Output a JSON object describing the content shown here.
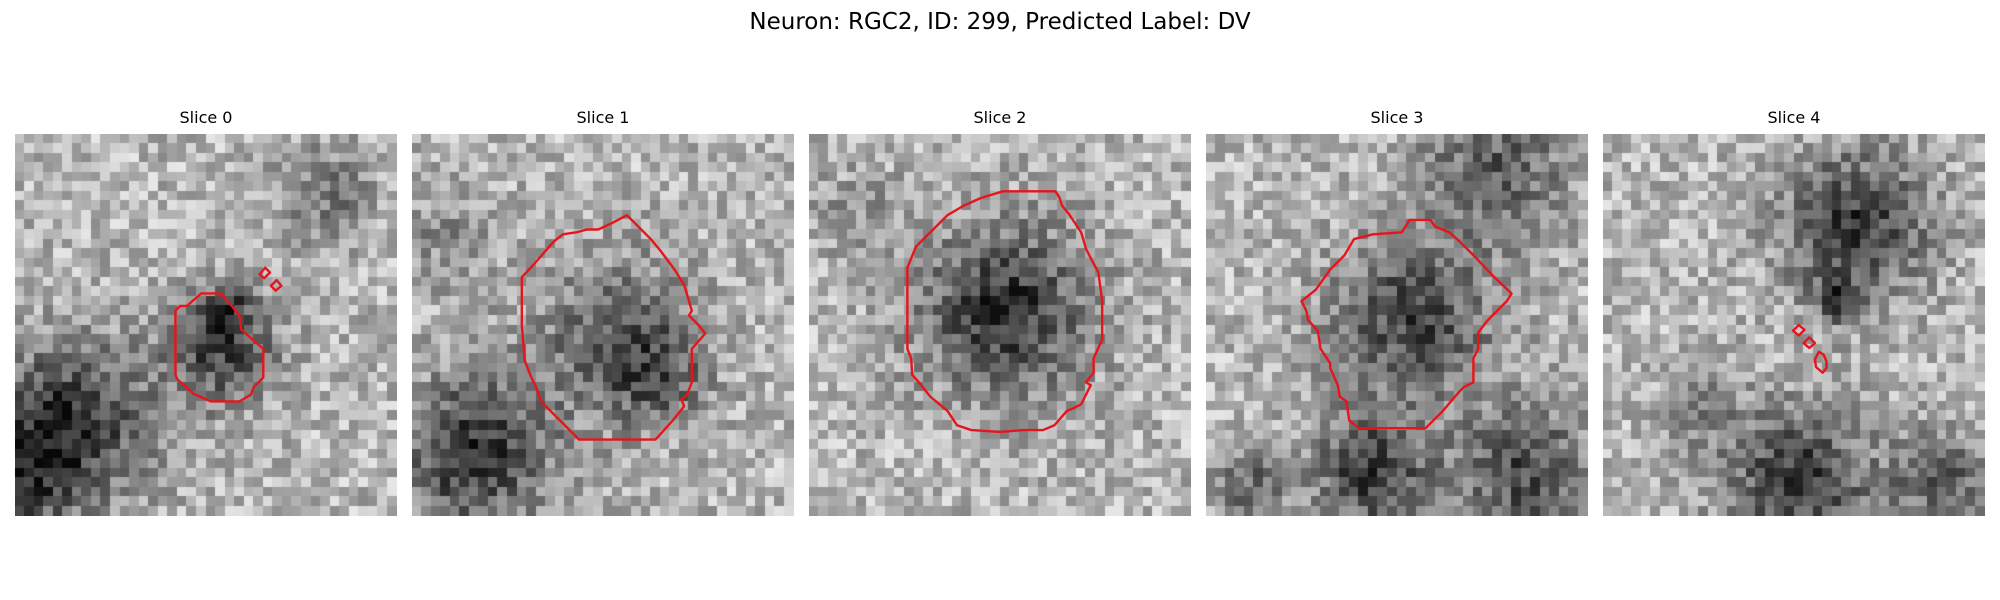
{
  "figure": {
    "title": "Neuron: RGC2, ID: 299, Predicted Label: DV"
  },
  "colors": {
    "background": "#ffffff",
    "contour": "#e8141b",
    "colormap": "gray"
  },
  "panels": [
    {
      "title": "Slice 0",
      "contours": [
        [
          [
            16.8,
            18.5
          ],
          [
            17.3,
            18.0
          ],
          [
            18.0,
            18.0
          ],
          [
            19.5,
            16.7
          ],
          [
            21.5,
            16.7
          ],
          [
            22.7,
            18.0
          ],
          [
            23.5,
            19.0
          ],
          [
            23.7,
            20.5
          ],
          [
            26.0,
            22.5
          ],
          [
            26.0,
            25.0
          ],
          [
            26.0,
            25.5
          ],
          [
            25.0,
            26.5
          ],
          [
            24.7,
            27.3
          ],
          [
            23.5,
            28.0
          ],
          [
            20.5,
            28.0
          ],
          [
            18.7,
            27.2
          ],
          [
            17.0,
            25.7
          ],
          [
            16.8,
            25.2
          ],
          [
            16.8,
            18.5
          ]
        ],
        [
          [
            25.6,
            14.7
          ],
          [
            26.2,
            14.0
          ],
          [
            26.7,
            14.5
          ],
          [
            26.1,
            15.1
          ],
          [
            25.6,
            14.7
          ]
        ],
        [
          [
            26.8,
            15.9
          ],
          [
            27.4,
            15.3
          ],
          [
            27.9,
            15.9
          ],
          [
            27.3,
            16.4
          ],
          [
            26.8,
            15.9
          ]
        ]
      ]
    },
    {
      "title": "Slice 1",
      "contours": [
        [
          [
            11.5,
            15.0
          ],
          [
            12.8,
            13.6
          ],
          [
            14.8,
            11.3
          ],
          [
            15.8,
            10.5
          ],
          [
            17.2,
            10.3
          ],
          [
            18.3,
            10.0
          ],
          [
            19.5,
            10.0
          ],
          [
            21.0,
            9.3
          ],
          [
            22.5,
            8.5
          ],
          [
            23.7,
            9.7
          ],
          [
            25.0,
            11.0
          ],
          [
            26.0,
            12.2
          ],
          [
            27.5,
            14.2
          ],
          [
            28.5,
            15.8
          ],
          [
            29.3,
            18.5
          ],
          [
            29.0,
            19.0
          ],
          [
            30.0,
            20.0
          ],
          [
            30.7,
            20.9
          ],
          [
            29.3,
            22.5
          ],
          [
            29.3,
            26.0
          ],
          [
            28.8,
            27.3
          ],
          [
            28.2,
            27.8
          ],
          [
            28.5,
            28.5
          ],
          [
            27.3,
            30.0
          ],
          [
            25.5,
            32.0
          ],
          [
            17.5,
            32.0
          ],
          [
            16.0,
            30.5
          ],
          [
            13.5,
            28.0
          ],
          [
            13.0,
            26.5
          ],
          [
            12.5,
            25.5
          ],
          [
            11.8,
            23.7
          ],
          [
            11.5,
            20.0
          ],
          [
            11.5,
            15.0
          ]
        ]
      ]
    },
    {
      "title": "Slice 2",
      "contours": [
        [
          [
            10.3,
            14.0
          ],
          [
            11.2,
            11.8
          ],
          [
            12.5,
            10.5
          ],
          [
            13.5,
            9.5
          ],
          [
            14.5,
            8.5
          ],
          [
            16.2,
            7.5
          ],
          [
            18.0,
            6.7
          ],
          [
            20.3,
            6.0
          ],
          [
            25.8,
            6.0
          ],
          [
            26.2,
            6.6
          ],
          [
            26.5,
            7.5
          ],
          [
            27.3,
            8.5
          ],
          [
            28.5,
            10.3
          ],
          [
            29.0,
            12.0
          ],
          [
            29.5,
            13.0
          ],
          [
            30.3,
            14.5
          ],
          [
            30.5,
            16.0
          ],
          [
            30.7,
            17.5
          ],
          [
            30.7,
            21.5
          ],
          [
            29.8,
            23.5
          ],
          [
            29.8,
            25.0
          ],
          [
            29.0,
            26.0
          ],
          [
            29.5,
            26.3
          ],
          [
            28.5,
            28.3
          ],
          [
            27.5,
            28.8
          ],
          [
            27.0,
            29.0
          ],
          [
            25.7,
            30.5
          ],
          [
            24.5,
            31.0
          ],
          [
            22.5,
            31.0
          ],
          [
            20.0,
            31.2
          ],
          [
            17.0,
            31.0
          ],
          [
            15.5,
            30.5
          ],
          [
            14.5,
            29.0
          ],
          [
            12.7,
            27.5
          ],
          [
            11.5,
            26.0
          ],
          [
            10.8,
            25.2
          ],
          [
            10.7,
            23.5
          ],
          [
            10.3,
            22.5
          ],
          [
            10.3,
            14.0
          ]
        ]
      ]
    },
    {
      "title": "Slice 3",
      "contours": [
        [
          [
            10.0,
            17.5
          ],
          [
            11.5,
            16.3
          ],
          [
            13.0,
            14.2
          ],
          [
            14.5,
            12.7
          ],
          [
            15.5,
            11.0
          ],
          [
            17.5,
            10.5
          ],
          [
            20.5,
            10.3
          ],
          [
            21.3,
            9.0
          ],
          [
            23.5,
            9.0
          ],
          [
            24.0,
            9.7
          ],
          [
            25.5,
            10.3
          ],
          [
            26.5,
            11.2
          ],
          [
            28.3,
            13.0
          ],
          [
            30.2,
            15.0
          ],
          [
            32.0,
            16.7
          ],
          [
            31.5,
            17.5
          ],
          [
            29.5,
            19.5
          ],
          [
            28.5,
            20.8
          ],
          [
            28.5,
            22.5
          ],
          [
            28.0,
            23.5
          ],
          [
            28.0,
            26.0
          ],
          [
            27.0,
            26.5
          ],
          [
            26.5,
            27.0
          ],
          [
            24.8,
            29.0
          ],
          [
            23.0,
            30.8
          ],
          [
            16.0,
            30.8
          ],
          [
            15.0,
            30.0
          ],
          [
            14.7,
            28.0
          ],
          [
            14.0,
            27.5
          ],
          [
            13.8,
            26.3
          ],
          [
            13.0,
            24.5
          ],
          [
            13.0,
            24.0
          ],
          [
            12.0,
            22.5
          ],
          [
            11.7,
            20.6
          ],
          [
            10.7,
            19.5
          ],
          [
            10.5,
            18.5
          ],
          [
            10.0,
            17.5
          ]
        ]
      ]
    },
    {
      "title": "Slice 4",
      "contours": [
        [
          [
            19.9,
            20.6
          ],
          [
            20.5,
            20.0
          ],
          [
            21.1,
            20.5
          ],
          [
            20.5,
            21.1
          ],
          [
            19.9,
            20.6
          ]
        ],
        [
          [
            21.0,
            21.9
          ],
          [
            21.6,
            21.3
          ],
          [
            22.2,
            21.9
          ],
          [
            21.6,
            22.4
          ],
          [
            21.0,
            21.9
          ]
        ],
        [
          [
            22.2,
            23.6
          ],
          [
            22.6,
            22.8
          ],
          [
            23.1,
            23.1
          ],
          [
            23.4,
            23.8
          ],
          [
            23.4,
            24.5
          ],
          [
            23.0,
            25.0
          ],
          [
            22.3,
            24.4
          ],
          [
            22.2,
            23.6
          ]
        ]
      ]
    }
  ]
}
